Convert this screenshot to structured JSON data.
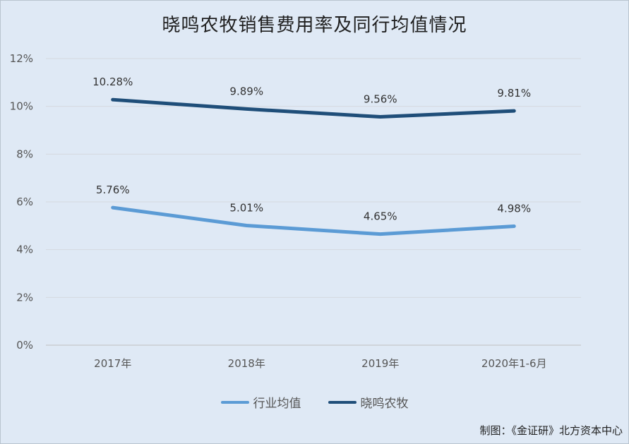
{
  "title": "晓鸣农牧销售费用率及同行均值情况",
  "source": "制图：《金证研》北方资本中心",
  "chart_data": {
    "type": "line",
    "title": "晓鸣农牧销售费用率及同行均值情况",
    "categories": [
      "2017年",
      "2018年",
      "2019年",
      "2020年1-6月"
    ],
    "y_ticks": [
      "0%",
      "2%",
      "4%",
      "6%",
      "8%",
      "10%",
      "12%"
    ],
    "ylim": [
      0,
      12
    ],
    "grid": true,
    "legend_position": "bottom",
    "series": [
      {
        "name": "行业均值",
        "color": "#5b9bd5",
        "values": [
          5.76,
          5.01,
          4.65,
          4.98
        ],
        "labels": [
          "5.76%",
          "5.01%",
          "4.65%",
          "4.98%"
        ]
      },
      {
        "name": "晓鸣农牧",
        "color": "#1f4e79",
        "values": [
          10.28,
          9.89,
          9.56,
          9.81
        ],
        "labels": [
          "10.28%",
          "9.89%",
          "9.56%",
          "9.81%"
        ]
      }
    ]
  }
}
